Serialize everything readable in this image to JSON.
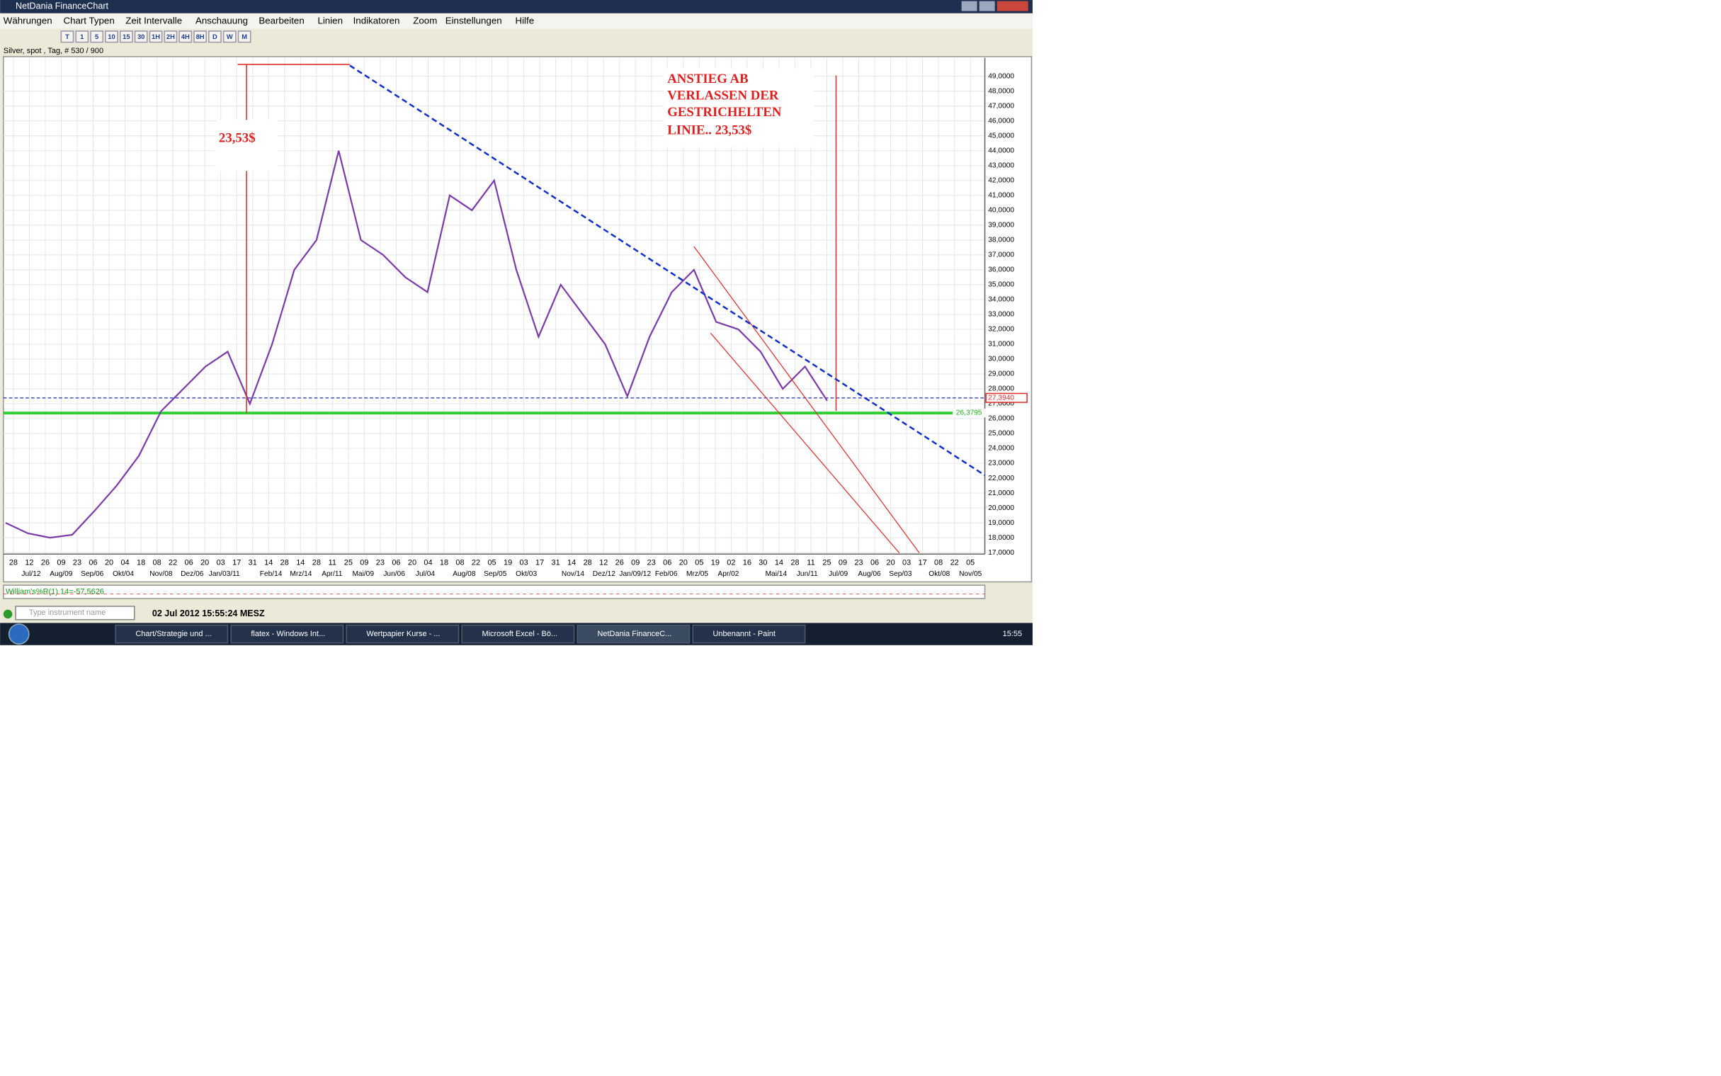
{
  "window": {
    "title": "NetDania FinanceChart"
  },
  "menu": [
    "Währungen",
    "Chart Typen",
    "Zeit Intervalle",
    "Anschauung",
    "Bearbeiten",
    "Linien",
    "Indikatoren",
    "Zoom",
    "Einstellungen",
    "Hilfe"
  ],
  "toolbar": [
    "T",
    "1",
    "5",
    "10",
    "15",
    "30",
    "1H",
    "2H",
    "4H",
    "8H",
    "D",
    "W",
    "M"
  ],
  "info": "Silver, spot , Tag, # 530 / 900",
  "chart_data": {
    "type": "line",
    "color": "#7a3aa8",
    "values": [
      19.0,
      18.3,
      18.0,
      18.2,
      19.8,
      21.5,
      23.5,
      26.5,
      28.0,
      29.5,
      30.5,
      27.0,
      31.0,
      36.0,
      38.0,
      44.0,
      38.0,
      37.0,
      35.5,
      34.5,
      41.0,
      40.0,
      42.0,
      36.0,
      31.5,
      35.0,
      33.0,
      31.0,
      27.5,
      31.5,
      34.5,
      36.0,
      32.5,
      32.0,
      30.5,
      28.0,
      29.5,
      27.2
    ],
    "ylim": [
      16.9,
      49.8
    ],
    "yticks": [
      {
        "value": 17,
        "label": "17,0000"
      },
      {
        "value": 18,
        "label": "18,0000"
      },
      {
        "value": 19,
        "label": "19,0000"
      },
      {
        "value": 20,
        "label": "20,0000"
      },
      {
        "value": 21,
        "label": "21,0000"
      },
      {
        "value": 22,
        "label": "22,0000"
      },
      {
        "value": 23,
        "label": "23,0000"
      },
      {
        "value": 24,
        "label": "24,0000"
      },
      {
        "value": 25,
        "label": "25,0000"
      },
      {
        "value": 26,
        "label": "26,0000"
      },
      {
        "value": 27,
        "label": "27,0000"
      },
      {
        "value": 28,
        "label": "28,0000"
      },
      {
        "value": 29,
        "label": "29,0000"
      },
      {
        "value": 30,
        "label": "30,0000"
      },
      {
        "value": 31,
        "label": "31,0000"
      },
      {
        "value": 32,
        "label": "32,0000"
      },
      {
        "value": 33,
        "label": "33,0000"
      },
      {
        "value": 34,
        "label": "34,0000"
      },
      {
        "value": 35,
        "label": "35,0000"
      },
      {
        "value": 36,
        "label": "36,0000"
      },
      {
        "value": 37,
        "label": "37,0000"
      },
      {
        "value": 38,
        "label": "38,0000"
      },
      {
        "value": 39,
        "label": "39,0000"
      },
      {
        "value": 40,
        "label": "40,0000"
      },
      {
        "value": 41,
        "label": "41,0000"
      },
      {
        "value": 42,
        "label": "42,0000"
      },
      {
        "value": 43,
        "label": "43,0000"
      },
      {
        "value": 44,
        "label": "44,0000"
      },
      {
        "value": 45,
        "label": "45,0000"
      },
      {
        "value": 46,
        "label": "46,0000"
      },
      {
        "value": 47,
        "label": "47,0000"
      },
      {
        "value": 48,
        "label": "48,0000"
      },
      {
        "value": 49,
        "label": "49,0000"
      }
    ],
    "grid": true,
    "levels": [
      {
        "value": 27.394,
        "label": "27,3940",
        "color": "#2030c0"
      },
      {
        "value": 26.3795,
        "label": "26,3795",
        "color": "#30d030"
      }
    ],
    "x_day_labels": [
      "28",
      "12",
      "26",
      "09",
      "23",
      "06",
      "20",
      "04",
      "18",
      "08",
      "22",
      "06",
      "20",
      "03",
      "17",
      "31",
      "14",
      "28",
      "14",
      "28",
      "11",
      "25",
      "09",
      "23",
      "06",
      "20",
      "04",
      "18",
      "08",
      "22",
      "05",
      "19",
      "03",
      "17",
      "31",
      "14",
      "28",
      "12",
      "26",
      "09",
      "23",
      "06",
      "20",
      "05",
      "19",
      "02",
      "16",
      "30",
      "14",
      "28",
      "11",
      "25",
      "09",
      "23",
      "06",
      "20",
      "03",
      "17",
      "08",
      "22",
      "05"
    ],
    "x_month_labels": [
      "Jul/12",
      "Aug/09",
      "Sep/06",
      "Okt/04",
      "Nov/08",
      "Dez/06",
      "Jan/03/11",
      "Feb/14",
      "Mrz/14",
      "Apr/11",
      "Mai/09",
      "Jun/06",
      "Jul/04",
      "Aug/08",
      "Sep/05",
      "Okt/03",
      "Nov/14",
      "Dez/12",
      "Jan/09/12",
      "Feb/06",
      "Mrz/05",
      "Apr/02",
      "Mai/14",
      "Jun/11",
      "Jul/09",
      "Aug/06",
      "Sep/03",
      "Okt/08",
      "Nov/05"
    ],
    "annotations": [
      "23,53$",
      "ANSTIEG AB",
      "VERLASSEN DER",
      "GESTRICHELTEN",
      "LINIE.. 23,53$"
    ]
  },
  "indicator": "William's%R(1) 14=-57,5626",
  "search_placeholder": "Type instrument name",
  "datetime": "02 Jul 2012 15:55:24 MESZ",
  "taskbar": [
    "Chart/Strategie und ...",
    "flatex - Windows Int...",
    "Wertpapier Kurse - ...",
    "Microsoft Excel - Bö...",
    "NetDania FinanceC...",
    "Unbenannt - Paint"
  ],
  "clock": "15:55"
}
